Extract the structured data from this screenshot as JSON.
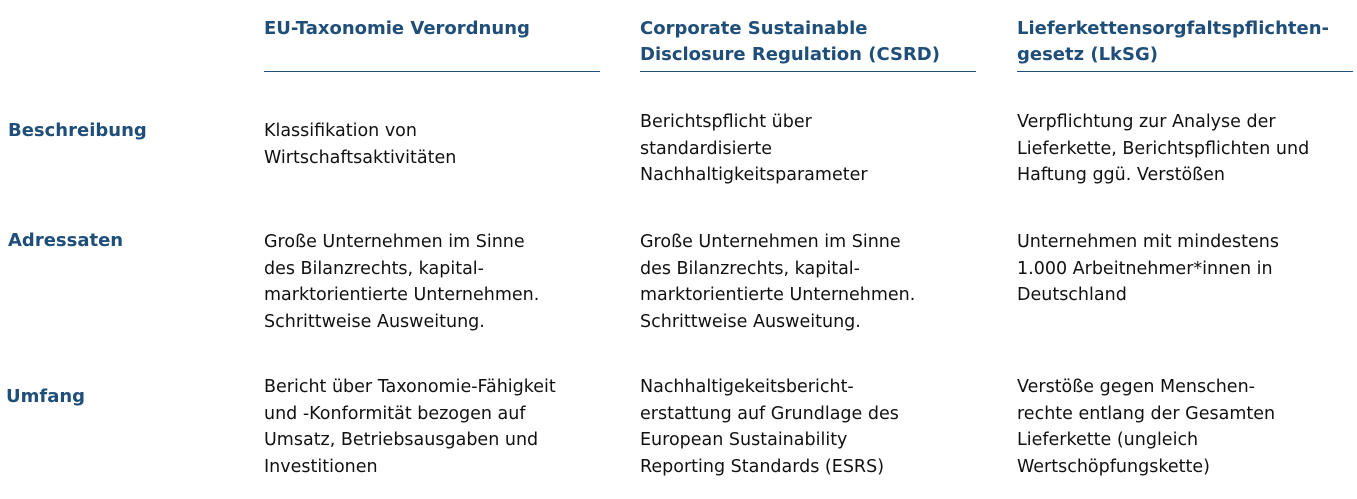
{
  "columns": [
    {
      "title": "EU-Taxonomie Verordnung"
    },
    {
      "title": "Corporate Sustainable\nDisclosure Regulation (CSRD)"
    },
    {
      "title": "Lieferkettensorgfaltspflichten-\ngesetz (LkSG)"
    }
  ],
  "rows": [
    {
      "label": "Beschreibung",
      "cells": [
        "Klassifikation von\nWirtschaftsaktivitäten",
        "Berichtspflicht über\nstandardisierte\nNachhaltigkeitsparameter",
        "Verpflichtung zur Analyse der\nLieferkette, Berichtspflichten und\nHaftung ggü. Verstößen"
      ]
    },
    {
      "label": "Adressaten",
      "cells": [
        "Große Unternehmen im Sinne\ndes Bilanzrechts, kapital-\nmarktorientierte Unternehmen.\nSchrittweise Ausweitung.",
        "Große Unternehmen im Sinne\ndes Bilanzrechts, kapital-\nmarktorientierte Unternehmen.\nSchrittweise Ausweitung.",
        "Unternehmen mit mindestens\n1.000 Arbeitnehmer*innen in\nDeutschland"
      ]
    },
    {
      "label": "Umfang",
      "cells": [
        "Bericht über Taxonomie-Fähigkeit\nund -Konformität bezogen auf\nUmsatz, Betriebsausgaben und\nInvestitionen",
        "Nachhaltigekeitsbericht-\nerstattung auf Grundlage des\nEuropean Sustainability\nReporting Standards (ESRS)",
        "Verstöße gegen Menschen-\nrechte entlang der Gesamten\nLieferkette (ungleich\nWertschöpfungskette)"
      ]
    }
  ]
}
